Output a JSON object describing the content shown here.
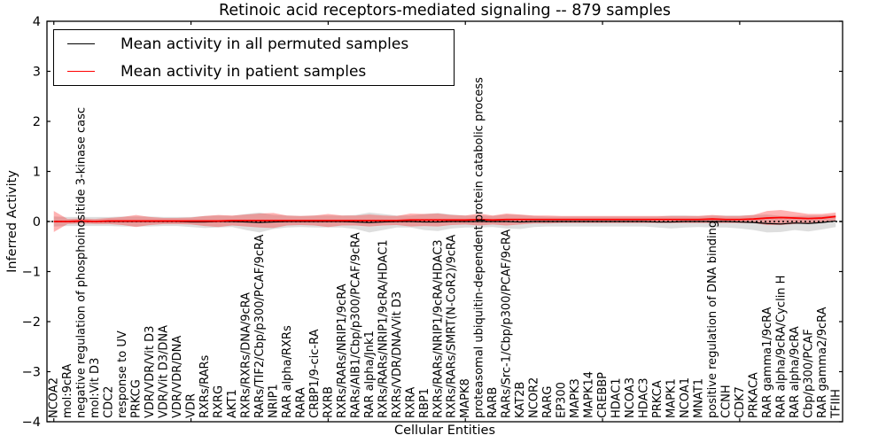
{
  "title": "Retinoic acid receptors-mediated signaling -- 879 samples",
  "legend": {
    "permuted_label": "Mean activity in all permuted samples",
    "patient_label": "Mean activity in patient samples"
  },
  "colors": {
    "permuted_line": "#000000",
    "patient_line": "#ff0000",
    "frame": "#000000",
    "zero_line": "#000000",
    "background": "#ffffff"
  },
  "chart_data": {
    "type": "line",
    "title": "Retinoic acid receptors-mediated signaling -- 879 samples",
    "xlabel": "Cellular Entities",
    "ylabel": "Inferred Activity",
    "ylim": [
      -4,
      4
    ],
    "grid": false,
    "legend_position": "upper left",
    "zero_reference_line": 0,
    "y_tick_labels": [
      "4",
      "3",
      "2",
      "1",
      "0",
      "−1",
      "−2",
      "−3",
      "−4"
    ],
    "y_tick_values": [
      4,
      3,
      2,
      1,
      0,
      -1,
      -2,
      -3,
      -4
    ],
    "x_major_tick_units": [
      0,
      10,
      20,
      30,
      40,
      50
    ],
    "categories": [
      "NCOA2",
      "mol:9cRA",
      "negative regulation of phosphoinositide 3-kinase casc",
      "mol:Vit D3",
      "CDC2",
      "response to UV",
      "PRKCG",
      "VDR/VDR/Vit D3",
      "VDR/Vit D3/DNA",
      "VDR/VDR/DNA",
      "VDR",
      "RXRs/RARs",
      "RXRG",
      "AKT1",
      "RXRs/RXRs/DNA/9cRA",
      "RARs/TIF2/Cbp/p300/PCAF/9cRA",
      "NRIP1",
      "RAR alpha/RXRs",
      "RARA",
      "CRBP1/9-cic-RA",
      "RXRB",
      "RXRs/RARs/NRIP1/9cRA",
      "RARs/AIB1/Cbp/p300/PCAF/9cRA",
      "RAR alpha/Jnk1",
      "RXRs/RARs/NRIP1/9cRA/HDAC1",
      "RXRs/VDR/DNA/Vit D3",
      "RXRA",
      "RBP1",
      "RXRs/RARs/NRIP1/9cRA/HDAC3",
      "RXRs/RARs/SMRT(N-CoR2)/9cRA",
      "MAPK8",
      "proteasomal ubiquitin-dependent protein catabolic process",
      "RARB",
      "RARs/Src-1/Cbp/p300/PCAF/9cRA",
      "KAT2B",
      "NCOR2",
      "RARG",
      "EP300",
      "MAPK3",
      "MAPK14",
      "CREBBP",
      "HDAC1",
      "NCOA3",
      "HDAC3",
      "PRKCA",
      "MAPK1",
      "NCOA1",
      "MNAT1",
      "positive regulation of DNA binding",
      "CCNH",
      "CDK7",
      "PRKACA",
      "RAR gamma1/9cRA",
      "RAR alpha/9cRA/Cyclin H",
      "RAR alpha/9cRA",
      "Cbp/p300/PCAF",
      "RAR gamma2/9cRA",
      "TFIIH"
    ],
    "series": [
      {
        "name": "Mean activity in all permuted samples",
        "color": "#000000",
        "line_width": 1.2,
        "band_opacity": 0.13,
        "values": [
          0,
          0,
          0,
          0,
          0,
          0,
          0,
          0,
          0,
          0,
          -0.01,
          -0.01,
          0,
          0,
          -0.01,
          -0.02,
          -0.01,
          0,
          0,
          0,
          0,
          0,
          -0.01,
          -0.02,
          -0.01,
          0,
          0,
          -0.01,
          -0.01,
          0,
          0,
          0,
          0,
          0,
          -0.01,
          0,
          0,
          0,
          0,
          0,
          0,
          0,
          0,
          0,
          -0.01,
          -0.01,
          0,
          0,
          0,
          0,
          -0.01,
          -0.02,
          -0.04,
          -0.05,
          -0.03,
          -0.04,
          -0.02,
          0.01
        ],
        "band_halfwidth": [
          0.1,
          0.09,
          0.09,
          0.09,
          0.09,
          0.1,
          0.1,
          0.1,
          0.09,
          0.09,
          0.1,
          0.12,
          0.12,
          0.11,
          0.16,
          0.2,
          0.14,
          0.12,
          0.11,
          0.12,
          0.12,
          0.12,
          0.14,
          0.2,
          0.16,
          0.12,
          0.12,
          0.16,
          0.18,
          0.14,
          0.12,
          0.12,
          0.11,
          0.14,
          0.14,
          0.11,
          0.1,
          0.1,
          0.1,
          0.1,
          0.1,
          0.1,
          0.1,
          0.1,
          0.11,
          0.13,
          0.12,
          0.11,
          0.12,
          0.12,
          0.13,
          0.15,
          0.18,
          0.16,
          0.14,
          0.16,
          0.14,
          0.12
        ]
      },
      {
        "name": "Mean activity in patient samples",
        "color": "#ff0000",
        "line_width": 1.8,
        "band_opacity": 0.3,
        "values": [
          0,
          0,
          0.01,
          0,
          0.01,
          0.01,
          0.01,
          0.01,
          0.01,
          0.01,
          0.01,
          0.01,
          0.01,
          0.02,
          0.02,
          0.02,
          0.02,
          0.02,
          0.02,
          0.02,
          0.02,
          0.02,
          0.02,
          0.02,
          0.02,
          0.02,
          0.03,
          0.03,
          0.03,
          0.03,
          0.03,
          0.04,
          0.03,
          0.04,
          0.04,
          0.04,
          0.04,
          0.04,
          0.04,
          0.04,
          0.04,
          0.04,
          0.04,
          0.04,
          0.04,
          0.04,
          0.04,
          0.04,
          0.05,
          0.04,
          0.04,
          0.05,
          0.07,
          0.08,
          0.07,
          0.06,
          0.07,
          0.1
        ],
        "band_halfwidth": [
          0.21,
          0.05,
          0.05,
          0.05,
          0.06,
          0.08,
          0.12,
          0.08,
          0.06,
          0.06,
          0.07,
          0.1,
          0.12,
          0.1,
          0.12,
          0.14,
          0.15,
          0.1,
          0.09,
          0.1,
          0.13,
          0.1,
          0.1,
          0.12,
          0.1,
          0.09,
          0.13,
          0.12,
          0.13,
          0.1,
          0.09,
          0.12,
          0.09,
          0.12,
          0.1,
          0.08,
          0.08,
          0.07,
          0.07,
          0.07,
          0.07,
          0.07,
          0.07,
          0.07,
          0.07,
          0.07,
          0.07,
          0.07,
          0.08,
          0.07,
          0.07,
          0.08,
          0.14,
          0.15,
          0.12,
          0.09,
          0.08,
          0.08
        ]
      }
    ]
  }
}
